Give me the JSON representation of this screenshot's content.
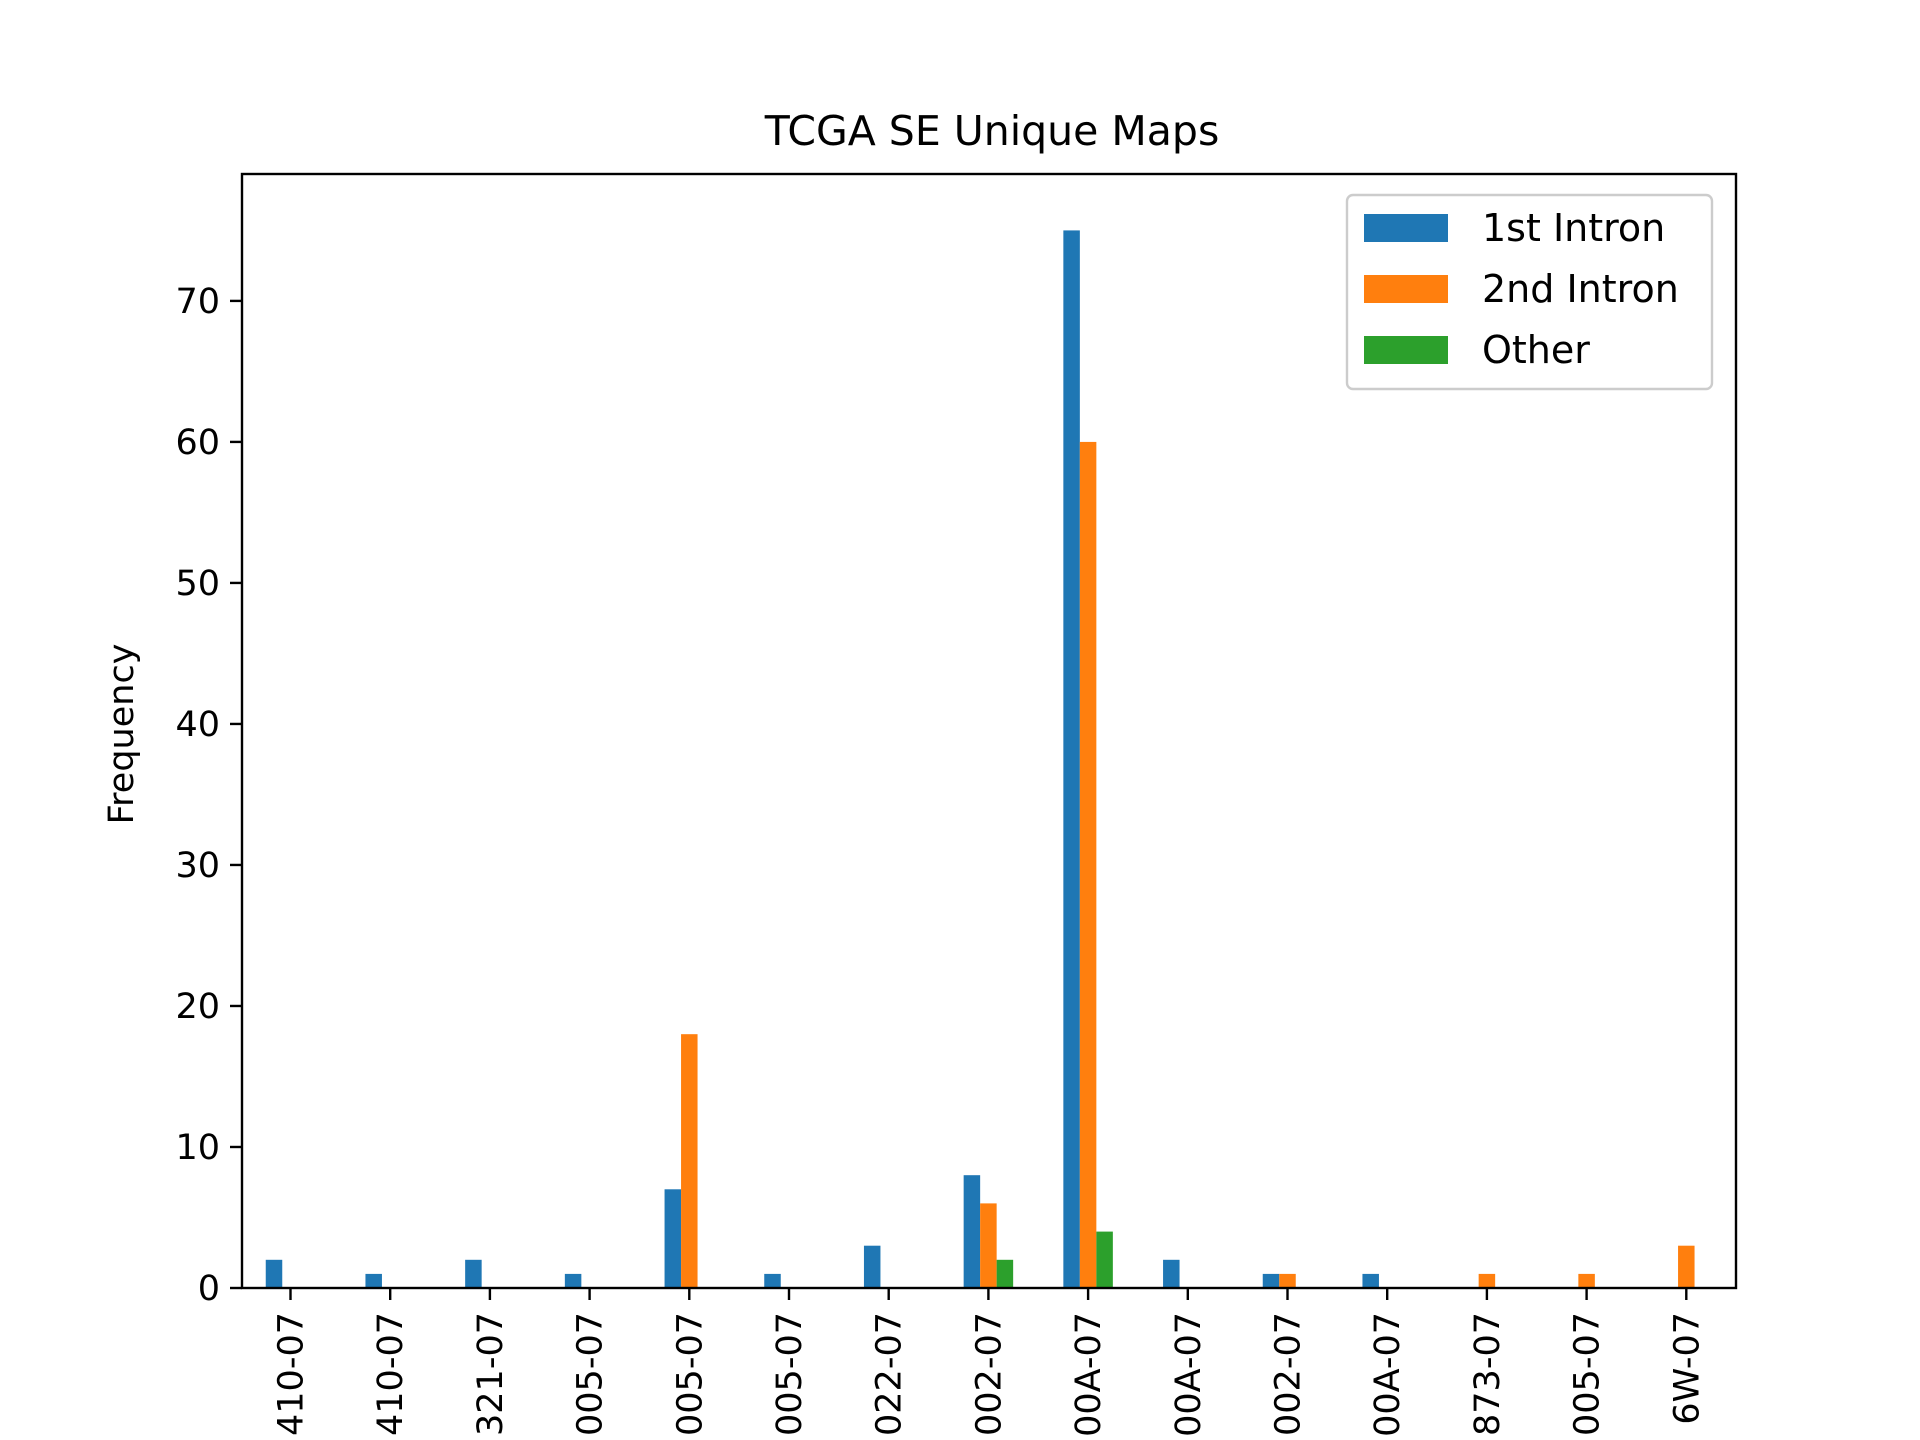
{
  "chart_data": {
    "type": "bar",
    "title": "TCGA SE Unique Maps",
    "xlabel": "",
    "ylabel": "Frequency",
    "ylim": [
      0,
      79
    ],
    "yticks": [
      0,
      10,
      20,
      30,
      40,
      50,
      60,
      70
    ],
    "grid": false,
    "legend_position": "top-right",
    "categories": [
      "410-07",
      "410-07",
      "321-07",
      "005-07",
      "005-07",
      "005-07",
      "022-07",
      "002-07",
      "00A-07",
      "00A-07",
      "002-07",
      "00A-07",
      "873-07",
      "005-07",
      "6W-07"
    ],
    "series": [
      {
        "name": "1st Intron",
        "color": "#1f77b4",
        "values": [
          2,
          1,
          2,
          1,
          7,
          1,
          3,
          8,
          75,
          2,
          1,
          1,
          0,
          0,
          0
        ]
      },
      {
        "name": "2nd Intron",
        "color": "#ff7f0e",
        "values": [
          0,
          0,
          0,
          0,
          18,
          0,
          0,
          6,
          60,
          0,
          1,
          0,
          1,
          1,
          3
        ]
      },
      {
        "name": "Other",
        "color": "#2ca02c",
        "values": [
          0,
          0,
          0,
          0,
          0,
          0,
          0,
          2,
          4,
          0,
          0,
          0,
          0,
          0,
          0
        ]
      }
    ]
  }
}
